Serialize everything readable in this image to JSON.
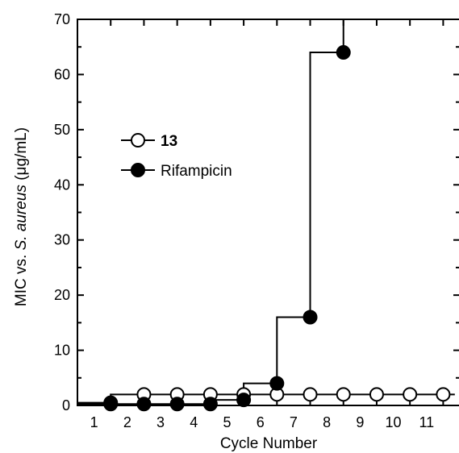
{
  "chart_data": {
    "type": "line",
    "xlabel": "Cycle Number",
    "ylabel_parts": [
      "MIC vs. ",
      "S. aureus",
      " (μg/mL)"
    ],
    "x_tick_labels": [
      "1",
      "2",
      "3",
      "4",
      "5",
      "6",
      "7",
      "8",
      "9",
      "10",
      "11"
    ],
    "y_ticks": [
      0,
      10,
      20,
      30,
      40,
      50,
      60,
      70
    ],
    "xlim": [
      0.5,
      12.0
    ],
    "ylim": [
      0,
      70
    ],
    "grid": false,
    "legend_position": "upper-left",
    "step_style": "step-up",
    "series": [
      {
        "name": "13",
        "marker": "open-circle",
        "color": "#000000",
        "x": [
          1.5,
          2.5,
          3.5,
          4.5,
          5.5,
          6.5,
          7.5,
          8.5,
          9.5,
          10.5,
          11.5
        ],
        "y": [
          0.5,
          2,
          2,
          2,
          2,
          2,
          2,
          2,
          2,
          2,
          2
        ]
      },
      {
        "name": "Rifampicin",
        "marker": "filled-circle",
        "color": "#000000",
        "x": [
          1.5,
          2.5,
          3.5,
          4.5,
          5.5,
          6.5,
          7.5,
          8.5
        ],
        "y": [
          0.25,
          0.25,
          0.25,
          0.25,
          1,
          4,
          16,
          64
        ]
      }
    ]
  }
}
